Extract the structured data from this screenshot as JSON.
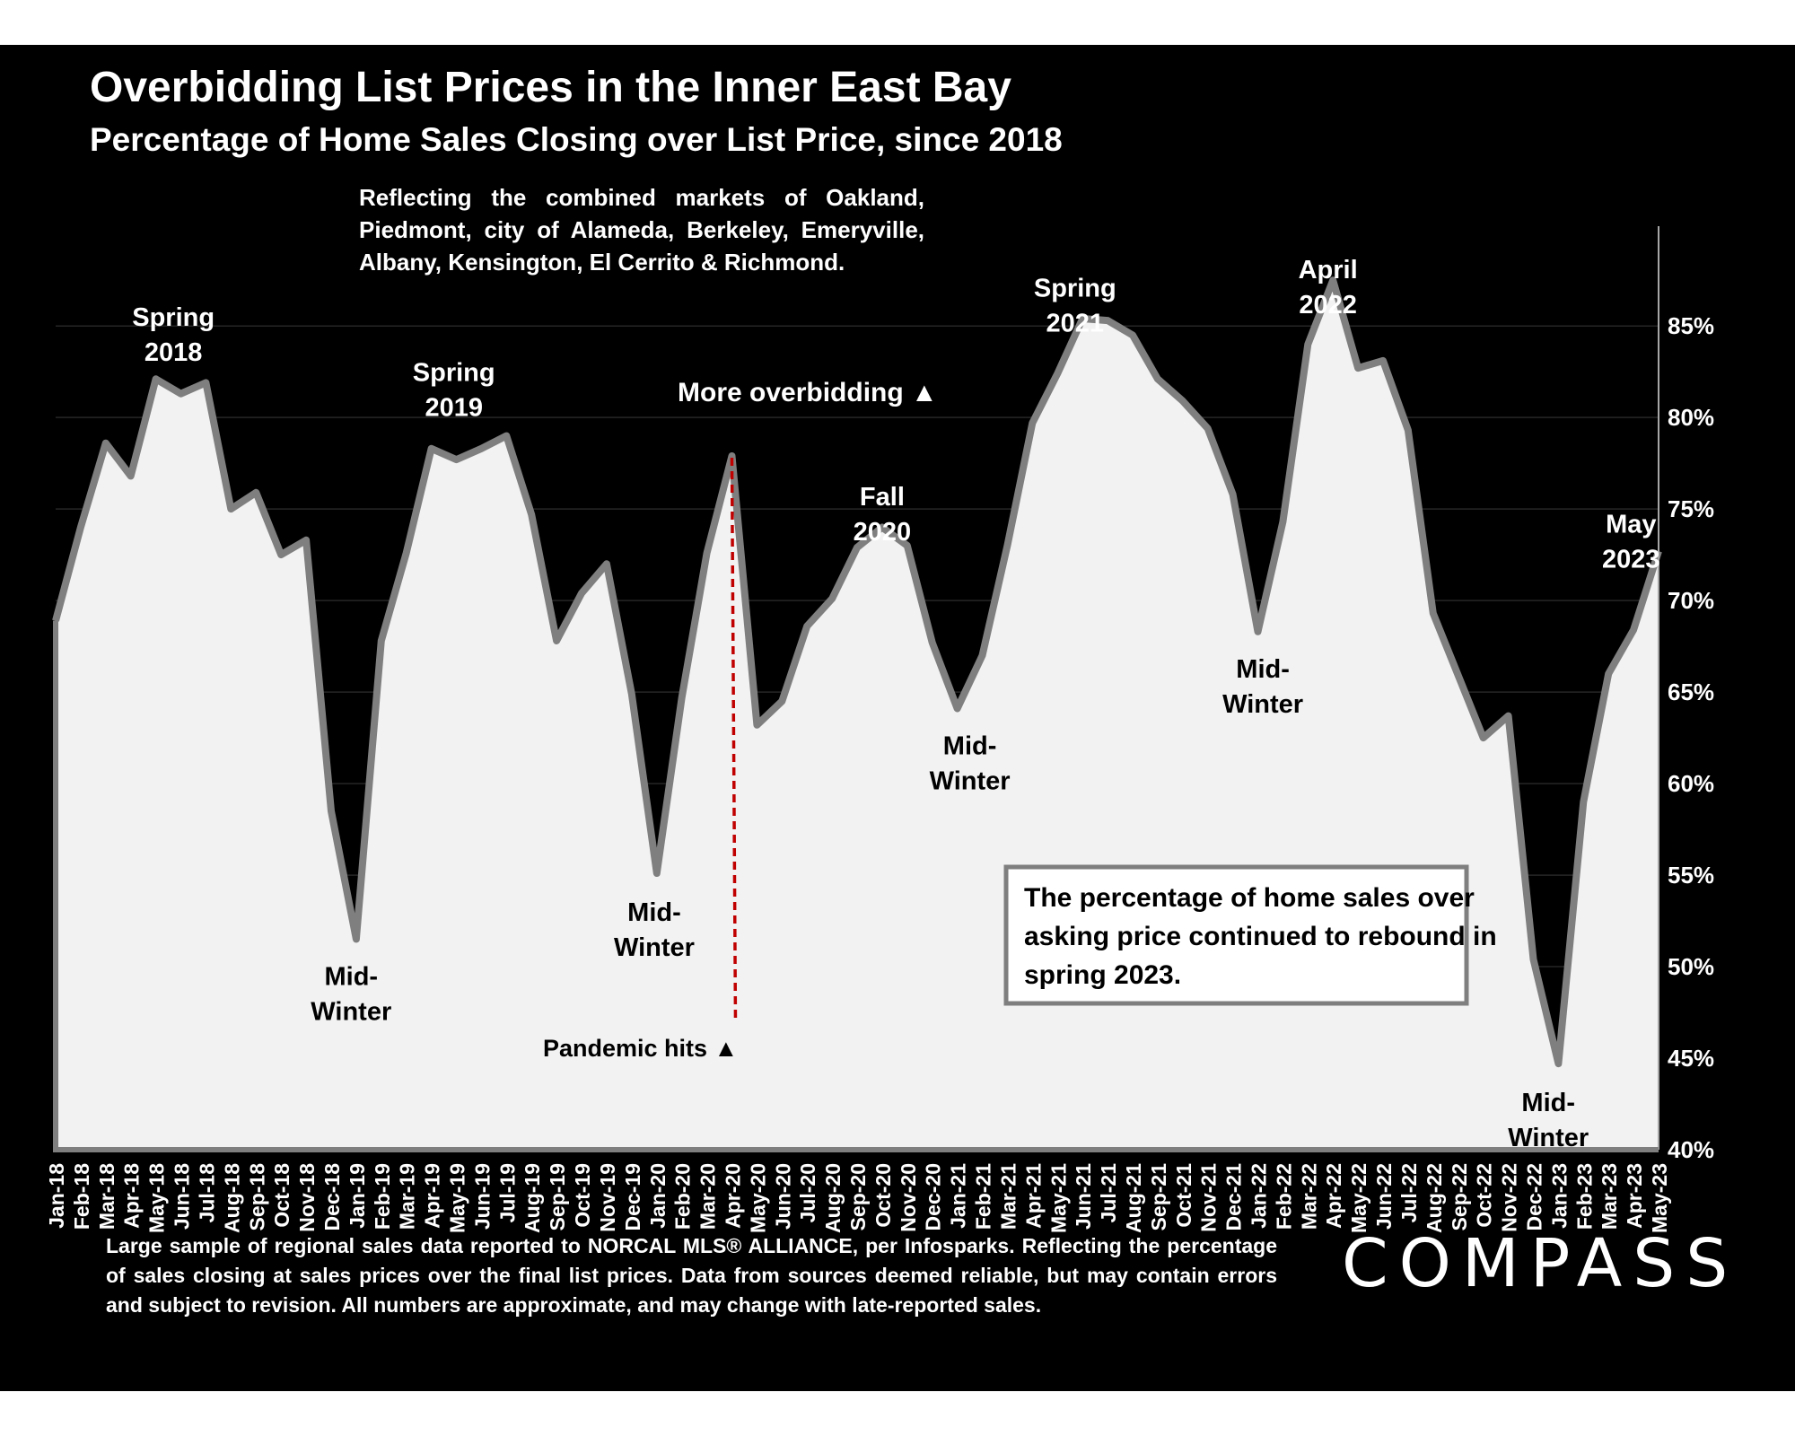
{
  "header": {
    "title": "Overbidding List Prices in the Inner East Bay",
    "subtitle": "Percentage of Home Sales Closing over List Price, since 2018"
  },
  "note": "Reflecting the combined markets of Oakland, Piedmont, city of Alameda, Berkeley, Emeryville, Albany, Kensington, El Cerrito & Richmond.",
  "footer": "Large sample of regional sales data reported to NORCAL MLS® ALLIANCE, per Infosparks. Reflecting the percentage of sales closing at sales prices over the final list prices. Data from sources deemed reliable, but may contain errors and subject to revision. All numbers are approximate, and may change with late-reported sales.",
  "logo": "COMPASS",
  "callout_box": "The percentage of home sales over asking price continued to rebound in spring 2023.",
  "colors": {
    "background": "#000000",
    "area_fill": "#f2f2f2",
    "line": "#7f7f7f",
    "pandemic_line": "#c00000",
    "text": "#ffffff"
  },
  "chart_data": {
    "type": "area",
    "ylim": [
      40,
      88
    ],
    "yticks": [
      40,
      45,
      50,
      55,
      60,
      65,
      70,
      75,
      80,
      85
    ],
    "ytick_labels": [
      "40%",
      "45%",
      "50%",
      "55%",
      "60%",
      "65%",
      "70%",
      "75%",
      "80%",
      "85%"
    ],
    "categories": [
      "Jan-18",
      "Feb-18",
      "Mar-18",
      "Apr-18",
      "May-18",
      "Jun-18",
      "Jul-18",
      "Aug-18",
      "Sep-18",
      "Oct-18",
      "Nov-18",
      "Dec-18",
      "Jan-19",
      "Feb-19",
      "Mar-19",
      "Apr-19",
      "May-19",
      "Jun-19",
      "Jul-19",
      "Aug-19",
      "Sep-19",
      "Oct-19",
      "Nov-19",
      "Dec-19",
      "Jan-20",
      "Feb-20",
      "Mar-20",
      "Apr-20",
      "May-20",
      "Jun-20",
      "Jul-20",
      "Aug-20",
      "Sep-20",
      "Oct-20",
      "Nov-20",
      "Dec-20",
      "Jan-21",
      "Feb-21",
      "Mar-21",
      "Apr-21",
      "May-21",
      "Jun-21",
      "Jul-21",
      "Aug-21",
      "Sep-21",
      "Oct-21",
      "Nov-21",
      "Dec-21",
      "Jan-22",
      "Feb-22",
      "Mar-22",
      "Apr-22",
      "May-22",
      "Jun-22",
      "Jul-22",
      "Aug-22",
      "Sep-22",
      "Oct-22",
      "Nov-22",
      "Dec-22",
      "Jan-23",
      "Feb-23",
      "Mar-23",
      "Apr-23",
      "May-23"
    ],
    "values": [
      68.9,
      74.0,
      78.6,
      76.8,
      82.1,
      81.3,
      81.9,
      75.0,
      75.9,
      72.5,
      73.3,
      58.5,
      51.5,
      67.8,
      72.6,
      78.3,
      77.7,
      78.3,
      79.0,
      74.7,
      67.8,
      70.4,
      72.0,
      64.9,
      55.1,
      64.7,
      72.6,
      77.9,
      63.2,
      64.5,
      68.6,
      70.1,
      72.9,
      74.0,
      73.0,
      67.7,
      64.1,
      67.0,
      73.0,
      79.7,
      82.4,
      85.4,
      85.3,
      84.5,
      82.1,
      80.9,
      79.4,
      75.8,
      68.3,
      74.3,
      84.0,
      87.5,
      82.7,
      83.1,
      79.3,
      69.3,
      65.9,
      62.5,
      63.7,
      50.4,
      44.7,
      59.0,
      66.0,
      68.4,
      72.7
    ],
    "annotations": [
      {
        "index": 4.7,
        "y": 85.0,
        "lines": [
          "Spring",
          "2018"
        ]
      },
      {
        "index": 11.8,
        "y": 49.0,
        "lines": [
          "Mid-",
          "Winter"
        ]
      },
      {
        "index": 15.9,
        "y": 82.0,
        "lines": [
          "Spring",
          "2019"
        ]
      },
      {
        "index": 23.9,
        "y": 52.5,
        "lines": [
          "Mid-",
          "Winter"
        ]
      },
      {
        "index": 33.0,
        "y": 75.2,
        "lines": [
          "Fall",
          "2020"
        ]
      },
      {
        "index": 36.5,
        "y": 61.6,
        "lines": [
          "Mid-",
          "Winter"
        ]
      },
      {
        "index": 40.7,
        "y": 86.6,
        "lines": [
          "Spring",
          "2021"
        ]
      },
      {
        "index": 48.2,
        "y": 65.8,
        "lines": [
          "Mid-",
          "Winter"
        ]
      },
      {
        "index": 50.8,
        "y": 87.6,
        "lines": [
          "April",
          "2022"
        ]
      },
      {
        "index": 59.6,
        "y": 42.1,
        "lines": [
          "Mid-",
          "Winter"
        ]
      },
      {
        "index": 62.9,
        "y": 73.7,
        "lines": [
          "May",
          "2023"
        ]
      }
    ],
    "more_overbidding_label": "More overbidding ▲",
    "pandemic_label": "Pandemic hits ▲",
    "pandemic_index": 27.0
  }
}
